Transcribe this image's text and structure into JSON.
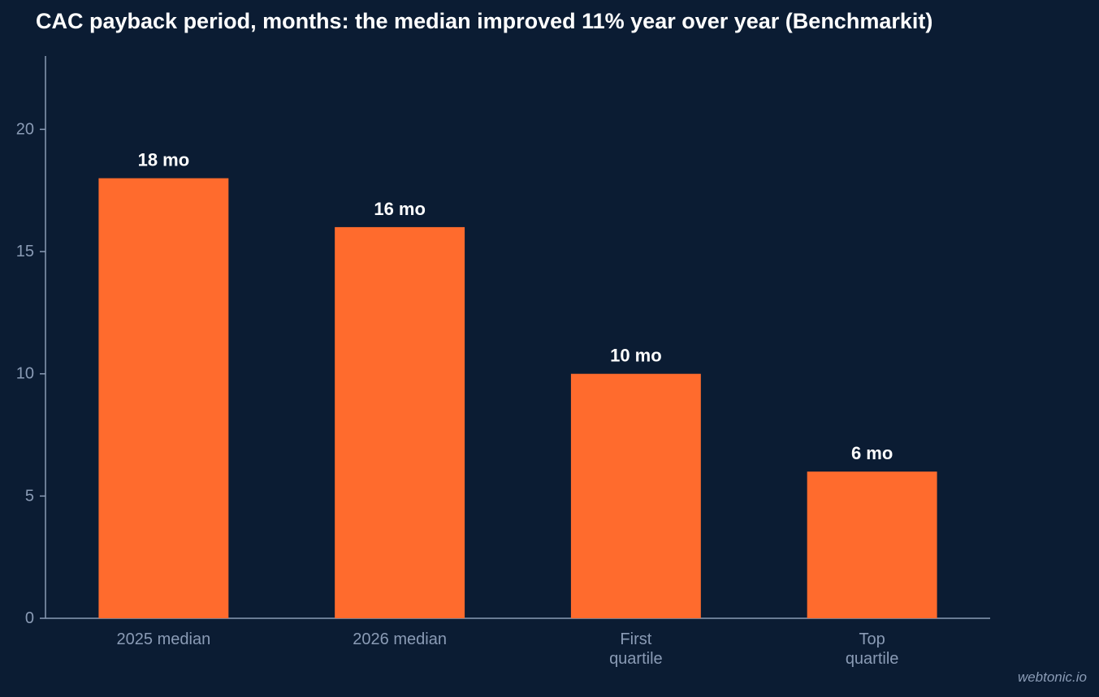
{
  "chart_data": {
    "type": "bar",
    "title": "CAC payback period, months: the median improved 11% year over year (Benchmarkit)",
    "categories": [
      "2025 median",
      "2026 median",
      "First quartile",
      "Top quartile"
    ],
    "category_labels": [
      [
        "2025 median"
      ],
      [
        "2026 median"
      ],
      [
        "First",
        "quartile"
      ],
      [
        "Top",
        "quartile"
      ]
    ],
    "values": [
      18,
      16,
      10,
      6
    ],
    "data_labels": [
      "18 mo",
      "16 mo",
      "10 mo",
      "6 mo"
    ],
    "xlabel": "",
    "ylabel": "",
    "ylim": [
      0,
      23
    ],
    "yticks": [
      0,
      5,
      10,
      15,
      20
    ],
    "grid": false,
    "legend": "none",
    "colors": {
      "background": "#0b1c33",
      "bar": "#ff6b2d",
      "axis": "#8a9bb5",
      "tick_text": "#8a9bb5",
      "data_label": "#ffffff",
      "title": "#ffffff"
    }
  },
  "watermark": "webtonic.io"
}
